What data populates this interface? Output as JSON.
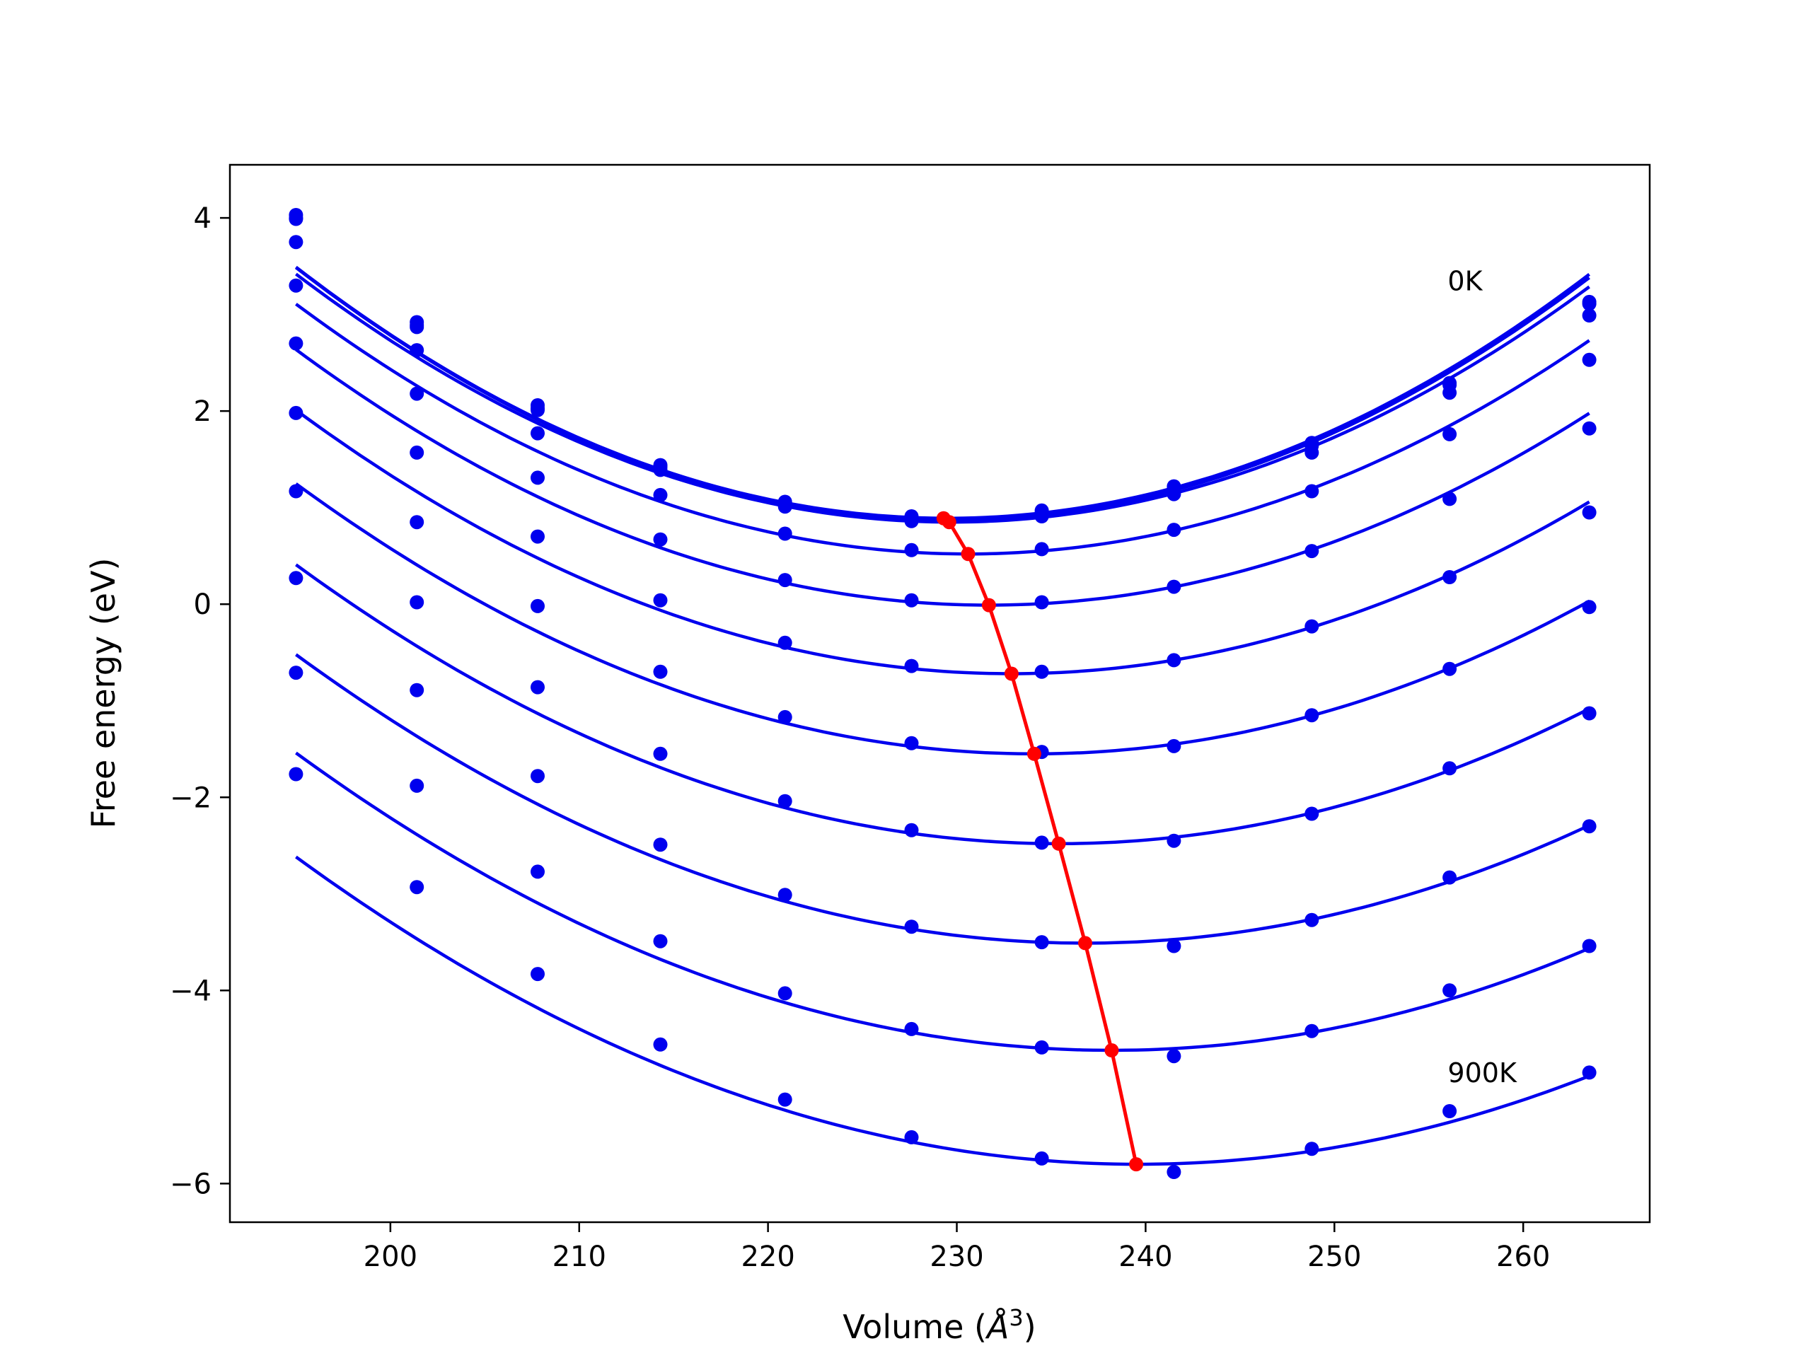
{
  "chart_data": {
    "type": "line",
    "title": "",
    "xlabel": "Volume (",
    "xlabel_unit": "Å",
    "xlabel_sup": "3",
    "xlabel_close": ")",
    "ylabel": "Free energy (eV)",
    "xlim": [
      191.5,
      266.7
    ],
    "ylim": [
      -6.4,
      4.55
    ],
    "xticks": [
      200,
      210,
      220,
      230,
      240,
      250,
      260
    ],
    "xtick_labels": [
      "200",
      "210",
      "220",
      "230",
      "240",
      "250",
      "260"
    ],
    "yticks": [
      -6,
      -4,
      -2,
      0,
      2,
      4
    ],
    "ytick_labels": [
      "−6",
      "−4",
      "−2",
      "0",
      "2",
      "4"
    ],
    "grid": false,
    "legend": "none",
    "colors": {
      "curves": "#0000ee",
      "minima": "#ff0000",
      "axes": "#000000"
    },
    "annotations": [
      {
        "text": "0K",
        "x": 256.0,
        "y": 3.25
      },
      {
        "text": "900K",
        "x": 256.0,
        "y": -4.95
      }
    ],
    "volumes": [
      195.0,
      201.4,
      207.8,
      214.3,
      220.9,
      227.6,
      234.5,
      241.5,
      248.8,
      256.1,
      263.5
    ],
    "series": [
      {
        "points_y": [
          4.03,
          2.92,
          2.06,
          1.44,
          1.06,
          0.91,
          0.97,
          1.22,
          1.67,
          2.29,
          3.13
        ],
        "fit": {
          "a": 0.002185,
          "v0": 229.5,
          "e0": 0.89
        }
      },
      {
        "points_y": [
          4.0,
          2.89,
          2.03,
          1.42,
          1.04,
          0.89,
          0.95,
          1.2,
          1.64,
          2.27,
          3.11
        ],
        "fit": {
          "a": 0.002185,
          "v0": 229.6,
          "e0": 0.87
        }
      },
      {
        "points_y": [
          3.99,
          2.87,
          2.01,
          1.39,
          1.01,
          0.86,
          0.91,
          1.14,
          1.57,
          2.19,
          2.99
        ],
        "fit": {
          "a": 0.002133,
          "v0": 229.7,
          "e0": 0.85
        }
      },
      {
        "points_y": [
          3.75,
          2.63,
          1.77,
          1.13,
          0.73,
          0.56,
          0.57,
          0.77,
          1.17,
          1.76,
          2.53
        ],
        "fit": {
          "a": 0.002042,
          "v0": 230.6,
          "e0": 0.52
        }
      },
      {
        "points_y": [
          3.3,
          2.18,
          1.31,
          0.67,
          0.25,
          0.04,
          0.02,
          0.18,
          0.55,
          1.09,
          1.82
        ],
        "fit": {
          "a": 0.001965,
          "v0": 231.7,
          "e0": -0.01
        }
      },
      {
        "points_y": [
          2.7,
          1.57,
          0.7,
          0.04,
          -0.4,
          -0.64,
          -0.7,
          -0.58,
          -0.23,
          0.28,
          0.95
        ],
        "fit": {
          "a": 0.0019,
          "v0": 232.9,
          "e0": -0.72
        }
      },
      {
        "points_y": [
          1.98,
          0.85,
          -0.02,
          -0.7,
          -1.17,
          -1.44,
          -1.53,
          -1.47,
          -1.15,
          -0.67,
          -0.03
        ],
        "fit": {
          "a": 0.00183,
          "v0": 234.1,
          "e0": -1.55
        }
      },
      {
        "points_y": [
          1.17,
          0.02,
          -0.86,
          -1.55,
          -2.04,
          -2.34,
          -2.47,
          -2.45,
          -2.17,
          -1.7,
          -1.13
        ],
        "fit": {
          "a": 0.00177,
          "v0": 235.4,
          "e0": -2.48
        }
      },
      {
        "points_y": [
          0.27,
          -0.89,
          -1.78,
          -2.49,
          -3.01,
          -3.34,
          -3.5,
          -3.54,
          -3.27,
          -2.83,
          -2.3
        ],
        "fit": {
          "a": 0.00171,
          "v0": 236.8,
          "e0": -3.51
        }
      },
      {
        "points_y": [
          -0.71,
          -1.88,
          -2.77,
          -3.49,
          -4.03,
          -4.4,
          -4.59,
          -4.68,
          -4.42,
          -4.0,
          -3.54
        ],
        "fit": {
          "a": 0.00165,
          "v0": 238.2,
          "e0": -4.62
        }
      },
      {
        "points_y": [
          -1.76,
          -2.93,
          -3.83,
          -4.56,
          -5.13,
          -5.52,
          -5.74,
          -5.88,
          -5.64,
          -5.25,
          -4.85
        ],
        "fit": {
          "a": 0.0016,
          "v0": 239.6,
          "e0": -5.8
        }
      }
    ],
    "minima": {
      "x": [
        229.3,
        229.6,
        230.6,
        231.7,
        232.9,
        234.1,
        235.4,
        236.8,
        238.2,
        239.5
      ],
      "y": [
        0.89,
        0.85,
        0.52,
        -0.01,
        -0.72,
        -1.55,
        -2.48,
        -3.51,
        -4.62,
        -5.8
      ]
    }
  }
}
